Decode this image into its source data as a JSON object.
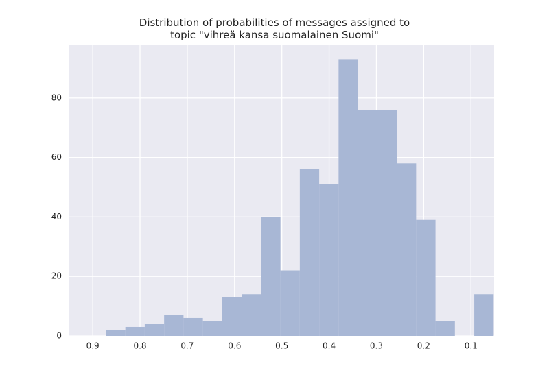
{
  "chart_data": {
    "type": "histogram",
    "title": "Distribution of probabilities of messages assigned to\ntopic \"vihreä kansa suomalainen Suomi\"",
    "bins": [
      0.052,
      0.093,
      0.134,
      0.175,
      0.216,
      0.257,
      0.298,
      0.339,
      0.38,
      0.421,
      0.462,
      0.503,
      0.544,
      0.585,
      0.626,
      0.667,
      0.708,
      0.749,
      0.79,
      0.831,
      0.872
    ],
    "values": [
      14,
      0,
      5,
      39,
      58,
      76,
      76,
      93,
      51,
      56,
      22,
      40,
      14,
      13,
      5,
      6,
      7,
      4,
      3,
      2
    ],
    "color": "#a8b7d5",
    "xlim": [
      0.951,
      0.051
    ],
    "xticks": [
      0.9,
      0.8,
      0.7,
      0.6,
      0.5,
      0.4,
      0.3,
      0.2,
      0.1
    ],
    "ylim": [
      0,
      97.7
    ],
    "yticks": [
      0,
      20,
      40,
      60,
      80
    ],
    "grid": true
  }
}
